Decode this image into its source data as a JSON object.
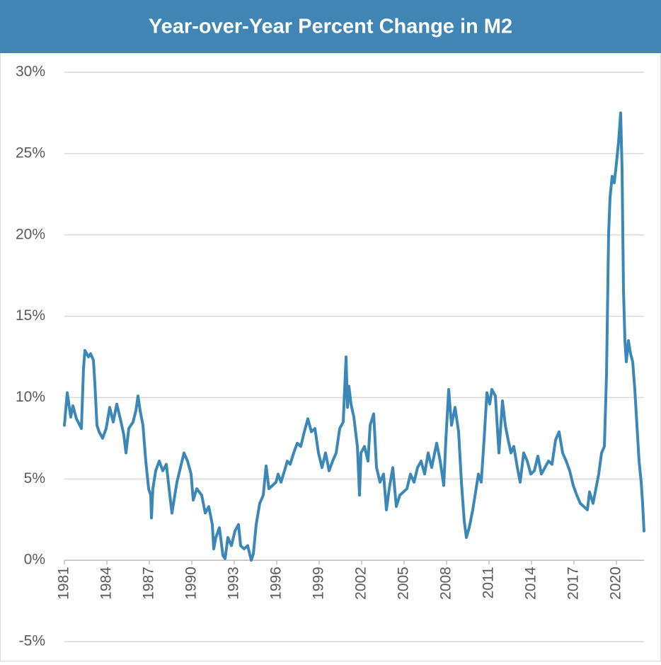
{
  "chart_data": {
    "type": "line",
    "title": "Year-over-Year Percent Change in M2",
    "color": "#3a87b8",
    "grid": true,
    "xlim": [
      1981,
      2021.95
    ],
    "xticks": [
      1981,
      1984,
      1987,
      1990,
      1993,
      1996,
      1999,
      2002,
      2005,
      2008,
      2011,
      2014,
      2017,
      2020
    ],
    "ylim": [
      -5,
      30
    ],
    "yticks": [
      {
        "value": -5,
        "label": "-5%"
      },
      {
        "value": 0,
        "label": "0%"
      },
      {
        "value": 5,
        "label": "5%"
      },
      {
        "value": 10,
        "label": "10%"
      },
      {
        "value": 15,
        "label": "15%"
      },
      {
        "value": 20,
        "label": "20%"
      },
      {
        "value": 25,
        "label": "25%"
      },
      {
        "value": 30,
        "label": "30%"
      }
    ],
    "x": [
      1981.0,
      1981.2,
      1981.45,
      1981.6,
      1981.85,
      1982.2,
      1982.35,
      1982.45,
      1982.7,
      1982.85,
      1983.05,
      1983.15,
      1983.3,
      1983.45,
      1983.7,
      1983.95,
      1984.2,
      1984.45,
      1984.7,
      1984.95,
      1985.2,
      1985.35,
      1985.55,
      1985.85,
      1986.05,
      1986.2,
      1986.35,
      1986.55,
      1986.75,
      1986.95,
      1987.1,
      1987.15,
      1987.25,
      1987.45,
      1987.7,
      1987.95,
      1988.2,
      1988.45,
      1988.6,
      1988.8,
      1988.95,
      1989.2,
      1989.45,
      1989.7,
      1989.95,
      1990.1,
      1990.35,
      1990.7,
      1990.95,
      1991.2,
      1991.45,
      1991.55,
      1991.7,
      1991.95,
      1992.2,
      1992.35,
      1992.55,
      1992.8,
      1993.05,
      1993.3,
      1993.45,
      1993.7,
      1993.95,
      1994.2,
      1994.35,
      1994.55,
      1994.8,
      1995.05,
      1995.25,
      1995.45,
      1995.7,
      1995.95,
      1996.1,
      1996.3,
      1996.55,
      1996.75,
      1996.95,
      1997.2,
      1997.45,
      1997.7,
      1997.95,
      1998.2,
      1998.45,
      1998.7,
      1998.95,
      1999.2,
      1999.45,
      1999.7,
      1999.95,
      2000.2,
      2000.45,
      2000.7,
      2000.9,
      2001.0,
      2001.1,
      2001.25,
      2001.45,
      2001.7,
      2001.85,
      2001.95,
      2002.2,
      2002.45,
      2002.6,
      2002.85,
      2003.05,
      2003.3,
      2003.55,
      2003.75,
      2003.95,
      2004.2,
      2004.45,
      2004.7,
      2004.95,
      2005.2,
      2005.45,
      2005.7,
      2005.95,
      2006.2,
      2006.45,
      2006.7,
      2006.95,
      2007.3,
      2007.55,
      2007.8,
      2007.95,
      2008.15,
      2008.35,
      2008.6,
      2008.85,
      2009.05,
      2009.25,
      2009.4,
      2009.6,
      2009.85,
      2010.05,
      2010.25,
      2010.45,
      2010.65,
      2010.85,
      2011.05,
      2011.2,
      2011.45,
      2011.7,
      2011.95,
      2012.15,
      2012.35,
      2012.55,
      2012.75,
      2013.0,
      2013.2,
      2013.45,
      2013.7,
      2013.95,
      2014.2,
      2014.45,
      2014.7,
      2014.95,
      2015.2,
      2015.45,
      2015.7,
      2015.95,
      2016.2,
      2016.45,
      2016.7,
      2016.95,
      2017.2,
      2017.45,
      2017.7,
      2017.95,
      2018.1,
      2018.35,
      2018.55,
      2018.75,
      2018.95,
      2019.15,
      2019.3,
      2019.45,
      2019.55,
      2019.7,
      2019.85,
      2020.0,
      2020.15,
      2020.3,
      2020.4,
      2020.5,
      2020.6,
      2020.7,
      2020.85,
      2021.0,
      2021.15,
      2021.3,
      2021.45,
      2021.6,
      2021.75,
      2021.85,
      2021.95
    ],
    "values": [
      8.3,
      10.3,
      8.8,
      9.5,
      8.7,
      8.1,
      11.8,
      12.9,
      12.5,
      12.7,
      12.3,
      10.9,
      8.3,
      7.9,
      7.5,
      8.1,
      9.4,
      8.5,
      9.6,
      8.7,
      7.7,
      6.6,
      8.1,
      8.5,
      9.2,
      10.1,
      9.2,
      8.3,
      6.1,
      4.4,
      4.0,
      2.6,
      4.4,
      5.5,
      6.1,
      5.5,
      5.9,
      4.0,
      2.9,
      4.0,
      4.8,
      5.7,
      6.6,
      6.1,
      5.3,
      3.7,
      4.4,
      4.0,
      2.9,
      3.3,
      2.2,
      0.7,
      1.4,
      2.0,
      0.3,
      0.1,
      1.4,
      0.9,
      1.8,
      2.2,
      0.9,
      0.7,
      0.9,
      0.0,
      0.4,
      2.2,
      3.5,
      4.0,
      5.8,
      4.4,
      4.6,
      4.8,
      5.3,
      4.8,
      5.5,
      6.1,
      5.9,
      6.6,
      7.2,
      7.0,
      7.9,
      8.7,
      7.9,
      8.1,
      6.6,
      5.7,
      6.6,
      5.5,
      6.1,
      6.6,
      8.1,
      8.5,
      12.5,
      9.4,
      10.7,
      9.6,
      8.8,
      7.0,
      4.0,
      6.6,
      7.0,
      6.1,
      8.3,
      9.0,
      5.7,
      4.8,
      5.3,
      3.1,
      4.4,
      5.7,
      3.3,
      4.0,
      4.2,
      4.4,
      5.3,
      4.8,
      5.7,
      6.1,
      5.3,
      6.6,
      5.7,
      7.2,
      6.1,
      4.6,
      7.4,
      10.5,
      8.3,
      9.4,
      7.9,
      4.8,
      2.4,
      1.4,
      2.0,
      3.1,
      4.2,
      5.3,
      4.8,
      7.4,
      10.3,
      9.6,
      10.5,
      10.1,
      6.6,
      9.8,
      8.3,
      7.4,
      6.6,
      7.0,
      5.7,
      4.8,
      6.6,
      6.1,
      5.3,
      5.5,
      6.4,
      5.3,
      5.7,
      6.1,
      5.9,
      7.4,
      7.9,
      6.6,
      6.1,
      5.5,
      4.6,
      4.0,
      3.5,
      3.3,
      3.1,
      4.2,
      3.5,
      4.4,
      5.3,
      6.6,
      7.0,
      11.4,
      20.1,
      22.3,
      23.6,
      23.2,
      24.4,
      25.7,
      27.5,
      24.0,
      16.6,
      13.5,
      12.2,
      13.5,
      12.7,
      12.2,
      10.5,
      8.3,
      6.1,
      4.8,
      3.5,
      1.8
    ]
  }
}
